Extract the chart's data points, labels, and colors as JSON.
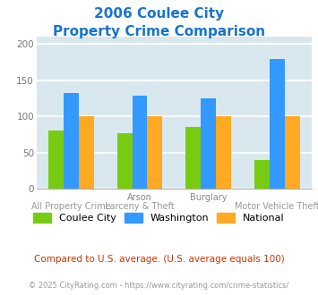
{
  "title_line1": "2006 Coulee City",
  "title_line2": "Property Crime Comparison",
  "title_color": "#1874CD",
  "cat_labels_top": [
    "",
    "Arson",
    "",
    "Burglary"
  ],
  "cat_labels_bottom": [
    "All Property Crime",
    "Larceny & Theft",
    "",
    "Motor Vehicle Theft"
  ],
  "groups": [
    "Coulee City",
    "Washington",
    "National"
  ],
  "values": {
    "Coulee City": [
      80,
      77,
      86,
      40
    ],
    "Washington": [
      133,
      129,
      125,
      180
    ],
    "National": [
      100,
      100,
      100,
      100
    ]
  },
  "colors": {
    "Coulee City": "#77CC11",
    "Washington": "#3399FF",
    "National": "#FFAA22"
  },
  "ylim": [
    0,
    210
  ],
  "yticks": [
    0,
    50,
    100,
    150,
    200
  ],
  "background_color": "#FFFFFF",
  "plot_bg_color": "#D9E8EE",
  "grid_color": "#FFFFFF",
  "bar_width": 0.22,
  "footnote1": "Compared to U.S. average. (U.S. average equals 100)",
  "footnote2": "© 2025 CityRating.com - https://www.cityrating.com/crime-statistics/",
  "footnote1_color": "#CC3300",
  "footnote2_color": "#999999"
}
